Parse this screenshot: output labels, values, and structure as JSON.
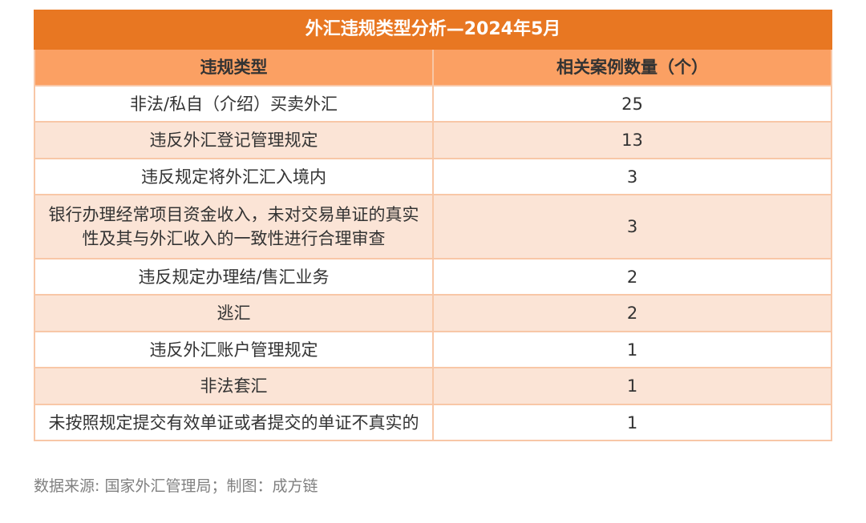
{
  "table": {
    "title": "外汇违规类型分析—2024年5月",
    "headers": [
      "违规类型",
      "相关案例数量（个）"
    ],
    "rows": [
      {
        "type": "非法/私自（介绍）买卖外汇",
        "count": "25"
      },
      {
        "type": "违反外汇登记管理规定",
        "count": "13"
      },
      {
        "type": "违反规定将外汇汇入境内",
        "count": "3"
      },
      {
        "type": "银行办理经常项目资金收入，未对交易单证的真实性及其与外汇收入的一致性进行合理审查",
        "count": "3"
      },
      {
        "type": "违反规定办理结/售汇业务",
        "count": "2"
      },
      {
        "type": "逃汇",
        "count": "2"
      },
      {
        "type": "违反外汇账户管理规定",
        "count": "1"
      },
      {
        "type": "非法套汇",
        "count": "1"
      },
      {
        "type": "未按照规定提交有效单证或者提交的单证不真实的",
        "count": "1"
      }
    ],
    "colors": {
      "title_bg": "#e87722",
      "header_bg": "#fba063",
      "alt_row_bg": "#fbe4d6",
      "border": "#f8c7a7"
    }
  },
  "source": "数据来源: 国家外汇管理局；制图：成方链"
}
